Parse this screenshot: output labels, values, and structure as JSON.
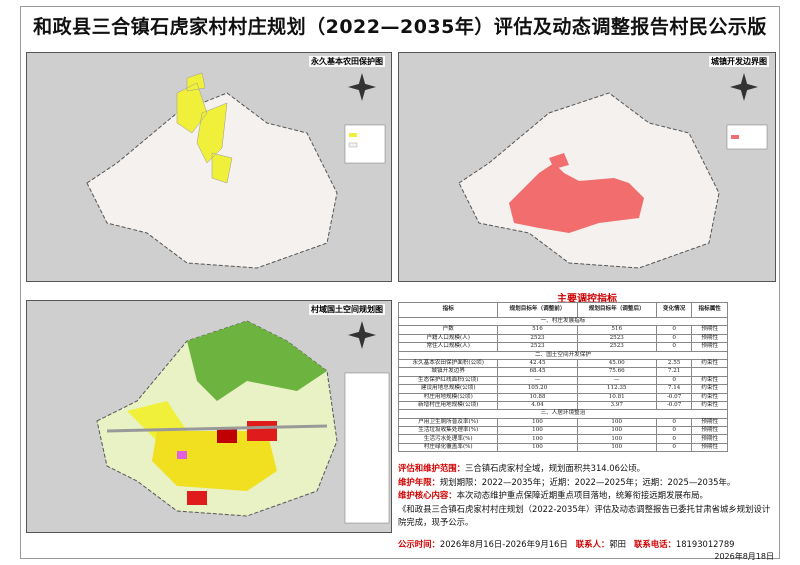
{
  "header": {
    "title": "和政县三合镇石虎家村村庄规划（2022—2035年）评估及动态调整报告村民公示版"
  },
  "maps": [
    {
      "title": "永久基本农田保护图"
    },
    {
      "title": "城镇开发边界图"
    },
    {
      "title": "村域国土空间规划图"
    }
  ],
  "table": {
    "title": "主要调控指标",
    "columns": [
      "指标",
      "规划目标年（调整前）",
      "规划目标年（调整后）",
      "变化情况",
      "指标属性"
    ],
    "sections": [
      {
        "title": "一、村庄发展指标",
        "rows": [
          [
            "户数",
            "516",
            "516",
            "0",
            "预期性"
          ],
          [
            "户籍人口规模(人)",
            "2523",
            "2523",
            "0",
            "预期性"
          ],
          [
            "常住人口规模(人)",
            "2523",
            "2523",
            "0",
            "预期性"
          ]
        ]
      },
      {
        "title": "二、国土空间开发保护",
        "rows": [
          [
            "永久基本农田保护面积(公顷)",
            "42.45",
            "45.00",
            "2.55",
            "约束性"
          ],
          [
            "城镇开发边界",
            "68.45",
            "75.66",
            "7.21"
          ],
          [
            "生态保护红线面积(公顷)",
            "—",
            "—",
            "0",
            "约束性"
          ],
          [
            "建设用地总规模(公顷)",
            "105.20",
            "112.35",
            "7.14",
            "约束性"
          ],
          [
            "村庄用地规模(公顷)",
            "10.88",
            "10.81",
            "-0.07",
            "约束性"
          ],
          [
            "新增村庄用地规模(公顷)",
            "4.04",
            "3.97",
            "-0.07",
            "约束性"
          ]
        ]
      },
      {
        "title": "三、人居环境整治",
        "rows": [
          [
            "户用卫生厕所普及率(%)",
            "100",
            "100",
            "0",
            "预期性"
          ],
          [
            "生活垃圾收集处理率(%)",
            "100",
            "100",
            "0",
            "预期性"
          ],
          [
            "生活污水处理率(%)",
            "100",
            "100",
            "0",
            "预期性"
          ],
          [
            "村庄绿化覆盖率(%)",
            "100",
            "100",
            "0",
            "预期性"
          ]
        ]
      }
    ]
  },
  "notes": [
    {
      "label": "评估和维护范围：",
      "text": "三合镇石虎家村全域，规划面积共314.06公顷。"
    },
    {
      "label": "维护年限：",
      "text": "规划期限：2022—2035年；近期：2022—2025年；远期：2025—2035年。"
    },
    {
      "label": "维护核心内容：",
      "text": "本次动态维护重点保障近期重点项目落地，统筹衔接远期发展布局。"
    },
    {
      "text": "《和政县三合镇石虎家村村庄规划（2022-2035年）评估及动态调整报告已委托甘肃省城乡规划设计院完成，现予公示。"
    }
  ],
  "publicity": {
    "time_label": "公示时间：",
    "time": "2026年8月16日-2026年9月16日",
    "contact_label": "联系人：",
    "contact": "郭田",
    "phone_label": "联系电话：",
    "phone": "18193012789"
  },
  "date": "2026年8月18日"
}
